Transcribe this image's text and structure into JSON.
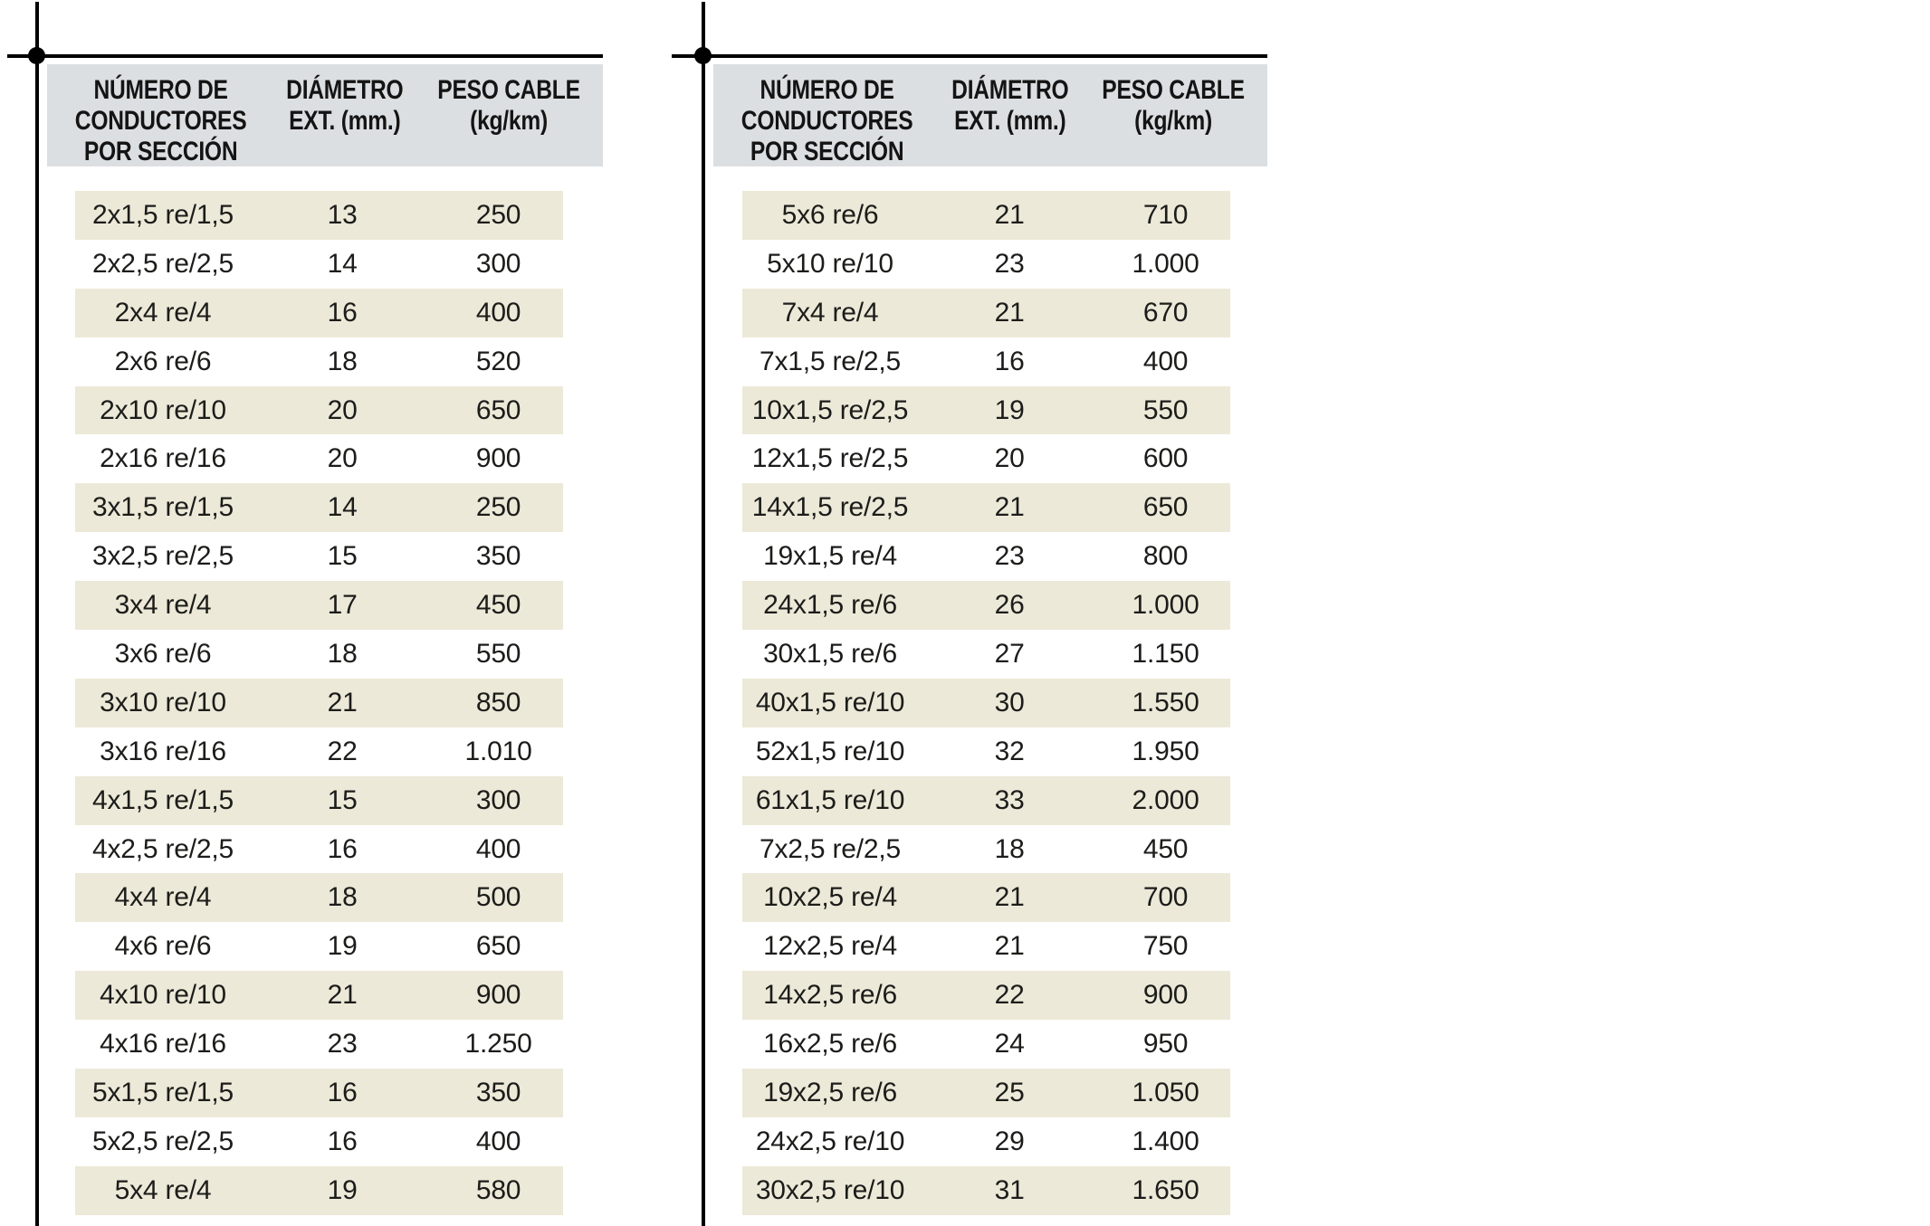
{
  "page": {
    "background": "#ffffff",
    "marks_color": "#000000",
    "header_bg": "#dcdfe1",
    "row_alt_bg": "#ece9d8",
    "row_bg": "#ffffff",
    "text_color": "#1c1c1a"
  },
  "tables": [
    {
      "columns": [
        "NÚMERO DE\nCONDUCTORES\nPOR SECCIÓN",
        "DIÁMETRO\nEXT. (mm.)",
        "PESO CABLE\n(kg/km)"
      ],
      "rows": [
        [
          "2x1,5 re/1,5",
          "13",
          "250"
        ],
        [
          "2x2,5 re/2,5",
          "14",
          "300"
        ],
        [
          "2x4 re/4",
          "16",
          "400"
        ],
        [
          "2x6 re/6",
          "18",
          "520"
        ],
        [
          "2x10 re/10",
          "20",
          "650"
        ],
        [
          "2x16 re/16",
          "20",
          "900"
        ],
        [
          "3x1,5 re/1,5",
          "14",
          "250"
        ],
        [
          "3x2,5 re/2,5",
          "15",
          "350"
        ],
        [
          "3x4 re/4",
          "17",
          "450"
        ],
        [
          "3x6 re/6",
          "18",
          "550"
        ],
        [
          "3x10 re/10",
          "21",
          "850"
        ],
        [
          "3x16 re/16",
          "22",
          "1.010"
        ],
        [
          "4x1,5 re/1,5",
          "15",
          "300"
        ],
        [
          "4x2,5 re/2,5",
          "16",
          "400"
        ],
        [
          "4x4 re/4",
          "18",
          "500"
        ],
        [
          "4x6 re/6",
          "19",
          "650"
        ],
        [
          "4x10 re/10",
          "21",
          "900"
        ],
        [
          "4x16 re/16",
          "23",
          "1.250"
        ],
        [
          "5x1,5 re/1,5",
          "16",
          "350"
        ],
        [
          "5x2,5 re/2,5",
          "16",
          "400"
        ],
        [
          "5x4 re/4",
          "19",
          "580"
        ]
      ]
    },
    {
      "columns": [
        "NÚMERO DE\nCONDUCTORES\nPOR SECCIÓN",
        "DIÁMETRO\nEXT. (mm.)",
        "PESO CABLE\n(kg/km)"
      ],
      "rows": [
        [
          "5x6 re/6",
          "21",
          "710"
        ],
        [
          "5x10 re/10",
          "23",
          "1.000"
        ],
        [
          "7x4 re/4",
          "21",
          "670"
        ],
        [
          "7x1,5 re/2,5",
          "16",
          "400"
        ],
        [
          "10x1,5 re/2,5",
          "19",
          "550"
        ],
        [
          "12x1,5 re/2,5",
          "20",
          "600"
        ],
        [
          "14x1,5 re/2,5",
          "21",
          "650"
        ],
        [
          "19x1,5 re/4",
          "23",
          "800"
        ],
        [
          "24x1,5 re/6",
          "26",
          "1.000"
        ],
        [
          "30x1,5 re/6",
          "27",
          "1.150"
        ],
        [
          "40x1,5 re/10",
          "30",
          "1.550"
        ],
        [
          "52x1,5 re/10",
          "32",
          "1.950"
        ],
        [
          "61x1,5 re/10",
          "33",
          "2.000"
        ],
        [
          "7x2,5 re/2,5",
          "18",
          "450"
        ],
        [
          "10x2,5 re/4",
          "21",
          "700"
        ],
        [
          "12x2,5 re/4",
          "21",
          "750"
        ],
        [
          "14x2,5 re/6",
          "22",
          "900"
        ],
        [
          "16x2,5 re/6",
          "24",
          "950"
        ],
        [
          "19x2,5 re/6",
          "25",
          "1.050"
        ],
        [
          "24x2,5 re/10",
          "29",
          "1.400"
        ],
        [
          "30x2,5 re/10",
          "31",
          "1.650"
        ]
      ]
    }
  ]
}
